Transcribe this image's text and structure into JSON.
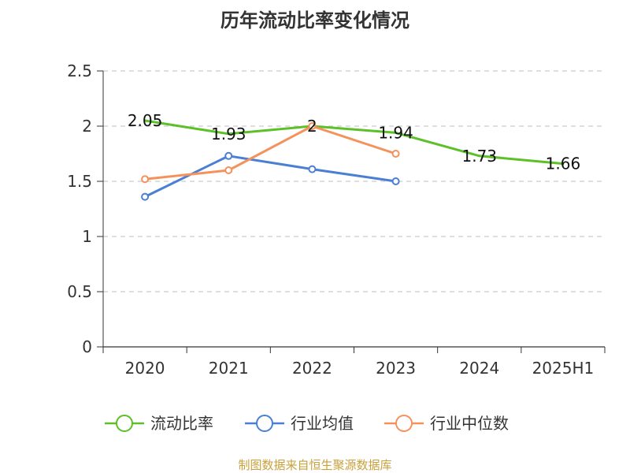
{
  "chart_data": {
    "type": "line",
    "title": "历年流动比率变化情况",
    "categories": [
      "2020",
      "2021",
      "2022",
      "2023",
      "2024",
      "2025H1"
    ],
    "ylim": [
      0,
      2.5
    ],
    "yticks": [
      "0",
      "0.5",
      "1",
      "1.5",
      "2",
      "2.5"
    ],
    "grid": true,
    "legend_position": "bottom",
    "series": [
      {
        "name": "流动比率",
        "color": "#5cc028",
        "values": [
          2.05,
          1.93,
          2.0,
          1.94,
          1.73,
          1.66
        ],
        "labels": [
          "2.05",
          "1.93",
          "2",
          "1.94",
          "1.73",
          "1.66"
        ],
        "markers": false
      },
      {
        "name": "行业均值",
        "color": "#4a7fd4",
        "values": [
          1.36,
          1.73,
          1.61,
          1.5,
          null,
          null
        ],
        "markers": true
      },
      {
        "name": "行业中位数",
        "color": "#f5925c",
        "values": [
          1.52,
          1.6,
          2.0,
          1.75,
          null,
          null
        ],
        "markers": true
      }
    ],
    "source": "制图数据来自恒生聚源数据库"
  }
}
